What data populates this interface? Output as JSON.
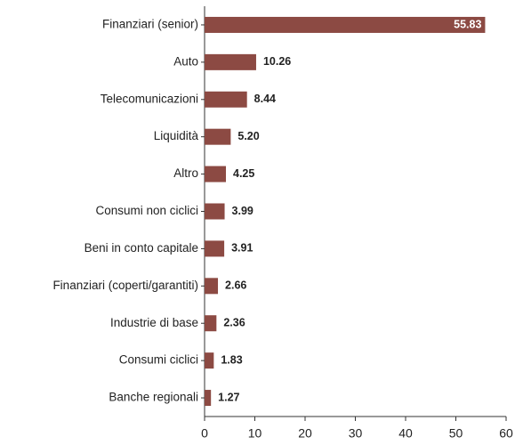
{
  "chart_data": {
    "type": "hbar",
    "categories": [
      "Finanziari (senior)",
      "Auto",
      "Telecomunicazioni",
      "Liquidità",
      "Altro",
      "Consumi non ciclici",
      "Beni in conto capitale",
      "Finanziari (coperti/garantiti)",
      "Industrie di base",
      "Consumi ciclici",
      "Banche regionali"
    ],
    "values": [
      55.83,
      10.26,
      8.44,
      5.2,
      4.25,
      3.99,
      3.91,
      2.66,
      2.36,
      1.83,
      1.27
    ],
    "value_labels": [
      "55.83",
      "10.26",
      "8.44",
      "5.20",
      "4.25",
      "3.99",
      "3.91",
      "2.66",
      "2.36",
      "1.83",
      "1.27"
    ],
    "color": "#8c4a43",
    "xlim": [
      0,
      60
    ],
    "xticks": [
      0,
      10,
      20,
      30,
      40,
      50,
      60
    ],
    "grid": false
  }
}
